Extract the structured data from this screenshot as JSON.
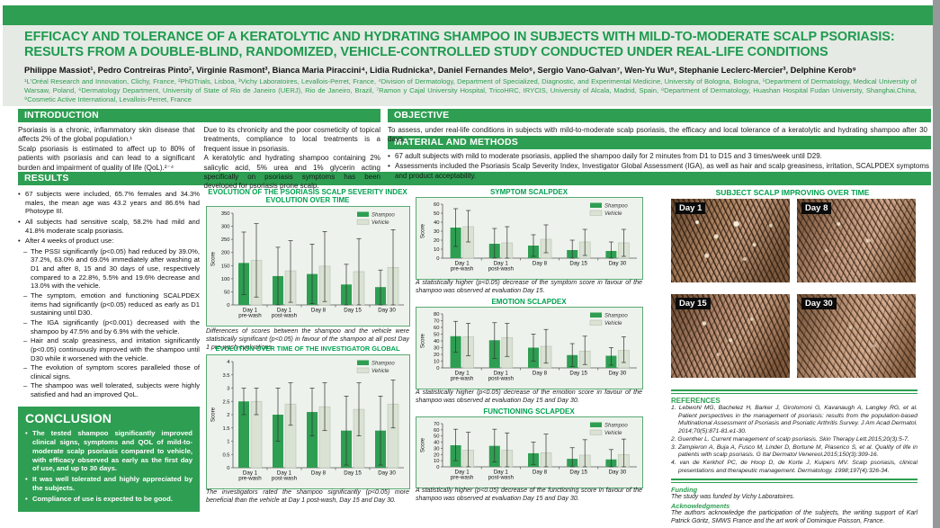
{
  "colors": {
    "accent_green": "#2e9e52",
    "chart_title_green": "#00a24f",
    "header_bg": "#e5eae4",
    "panel_bg": "#edf2ec",
    "shampoo_bar": "#2e9e52",
    "vehicle_bar": "#d9e2d3"
  },
  "header": {
    "title_line1": "EFFICACY AND TOLERANCE OF A KERATOLYTIC AND HYDRATING SHAMPOO IN SUBJECTS WITH MILD-TO-MODERATE SCALP PSORIASIS:",
    "title_line2": "RESULTS FROM A DOUBLE-BLIND, RANDOMIZED, VEHICLE-CONTROLLED STUDY CONDUCTED UNDER REAL-LIFE CONDITIONS",
    "authors": "Philippe Massiot¹, Pedro Contreiras Pinto², Virginie Rasmont³, Bianca Maria Piraccini⁴, Lidia Rudnicka⁵, Daniel Fernandes Melo⁶, Sergio Vano-Galvan⁷, Wen-Yu Wu⁸, Stephanie Leclerc-Mercier³, Delphine Kerob⁹",
    "affiliations": "¹L'Oréal Research and Innovation, Clichy, France, ²PhDTrials, Lisboa, ³Vichy Laboratoires, Levallois-Perret, France, ⁴Division of Dermatology, Department of Specialized, Diagnostic, and Experimental Medicine, University of Bologna, Bologna, ⁵Department of Dermatology, Medical University of Warsaw, Poland, ⁶Dermatology Department, University of State of Rio de Janeiro (UERJ), Rio de Janeiro, Brazil, ⁷Ramon y Cajal University Hospital, TricoHRC, IRYCIS, University of Alcala, Madrid, Spain, ⁸Department of Dermatology, Huashan Hospital Fudan University, Shanghai,China, ⁹Cosmetic Active International, Levallois-Perret, France"
  },
  "sections": {
    "introduction": {
      "heading": "INTRODUCTION",
      "col1_p1": "Psoriasis is a chronic, inflammatory skin disease that affects 2% of the global population.¹",
      "col1_p2": "Scalp psoriasis is estimated to affect up to 80% of patients with psoriasis and can lead to a significant burden and impairment of quality of life (QoL).²⁻⁴",
      "col2_p1": "Due to its chronicity and the poor cosmeticity of topical treatments, compliance to local treatments is a frequent issue in psoriasis.",
      "col2_p2": "A keratolytic and hydrating shampoo containing 2% salicylic acid, 5% urea and 1% glycerin acting specifically on psoriasis symptoms has been developed for psoriasis prone scalp."
    },
    "objective": {
      "heading": "OBJECTIVE",
      "text": "To assess, under real-life conditions in subjects with mild-to-moderate scalp psoriasis, the efficacy and local tolerance of a keratolytic and hydrating shampoo after 30 days."
    },
    "methods": {
      "heading": "MATERIAL AND METHODS",
      "bullets": [
        "67 adult subjects with mild to moderate psoriasis, applied the shampoo daily for 2 minutes from D1 to D15 and 3 times/week until D29.",
        "Assessments included the Psoriasis Scalp Severity Index, Investigator Global Assessment (IGA), as well as hair and scalp greasiness, irritation, SCALPDEX symptoms and product acceptability."
      ]
    },
    "results": {
      "heading": "RESULTS",
      "bullets": [
        "67 subjects were included, 65.7% females and 34.3% males, the mean age was 43.2 years and 86.6% had Photoype III.",
        "All subjects had sensitive scalp, 58.2% had mild and 41.8% moderate scalp psoriasis.",
        "After 4 weeks of product use:"
      ],
      "sub_bullets": [
        "The PSSI significantly (p<0.05) had reduced by 39.0%, 37.2%, 63.0% and 69.0% immediately after washing at D1 and after 8, 15 and 30 days of use, respectively compared to a 22.8%, 5.5% and 19.6% decrease and 13.0% with the vehicle.",
        "The symptom, emotion and functioning SCALPDEX items had significantly (p<0.05) reduced as early as D1 sustaining until D30.",
        "The IGA significantly (p<0.001) decreased with the shampoo by 47.5% and by 6.9% with the vehicle.",
        "Hair and scalp greasiness, and irritation significantly (p<0.05) continuously improved with the shampoo until D30 while it worsened with the vehicle.",
        "The evolution of symptom scores paralleled those of clinical signs.",
        "The shampoo was well tolerated, subjects were highly satisfied and had an improved QoL."
      ]
    },
    "conclusion": {
      "heading": "CONCLUSION",
      "bullets": [
        "The tested shampoo significantly improved clinical signs, symptoms and QOL of mild-to-moderate scalp psoriasis compared to vehicle, with efficacy observed as early as the first day of use, and up to 30 days.",
        "It was well tolerated and highly appreciated by the subjects.",
        "Compliance of use is expected to be good."
      ]
    },
    "scalp": {
      "heading": "SUBJECT SCALP IMPROVING OVER TIME",
      "photos": [
        "Day 1",
        "Day 8",
        "Day 15",
        "Day 30"
      ]
    },
    "references": {
      "heading": "REFERENCES",
      "items": [
        "1. Lebwohl MG, Bachelez H, Barker J, Girolomoni G, Kavanaugh A, Langley RG, et al. Patient perspectives in the management of psoriasis: results from the population-based Multinational Assessment of Psoriasis and Psoriatic Arthritis Survey. J Am Acad Dermatol. 2014;70(5):871-81.e1-30.",
        "2. Guenther L. Current management of scalp psoriasis. Skin Therapy Lett.2015;20(3):5-7.",
        "3. Zampieron A, Buja A, Fusco M, Linder D, Bortune M, Piaserico S, et al. Quality of life in patients with scalp psoriasis. G Ital Dermatol Venereol.2015;150(3):309-16.",
        "4. van de Kerkhof PC, de Hoop D, de Korte J, Kuipers MV. Scalp psoriasis, clinical presentations and therapeutic management. Dermatology. 1998;197(4):326-34."
      ],
      "funding_heading": "Funding",
      "funding_text": "The study was funded by Vichy Laboratoires.",
      "ack_heading": "Acknowledgments",
      "ack_text": "The authors acknowledge the participation of the subjects, the writing support of Karl Patrick Göritz, SMWS France and the art work of Dominique Poisson, France."
    }
  },
  "chart_data": [
    {
      "type": "bar",
      "title": "EVOLUTION OF THE PSORIASIS SCALP SEVERITY INDEX EVOLUTION OVER TIME",
      "ylabel": "Score",
      "ylim": [
        0,
        350
      ],
      "ytick": 50,
      "legend_position": "top-right",
      "grid": false,
      "categories": [
        "Day 1|pre-wash",
        "Day 1|post-wash",
        "Day 8",
        "Day 15",
        "Day 30"
      ],
      "series": [
        {
          "name": "Shampoo",
          "color": "#2e9e52",
          "values": [
            160,
            110,
            118,
            78,
            68
          ],
          "err_lo": [
            40,
            0,
            5,
            0,
            0
          ],
          "err_hi": [
            278,
            220,
            232,
            155,
            133
          ]
        },
        {
          "name": "Vehicle",
          "color": "#d9e2d3",
          "values": [
            170,
            130,
            148,
            127,
            143
          ],
          "err_lo": [
            30,
            10,
            13,
            0,
            0
          ],
          "err_hi": [
            310,
            245,
            280,
            253,
            287
          ]
        }
      ],
      "caption": "Differences of scores between the shampoo and the vehicle were statistically significant (p<0.05) in favour of the shampoo at all post Day 1 pre-wash evaluations."
    },
    {
      "type": "bar",
      "title": "EVOLUTION OVER TIME OF THE INVESTIGATOR GLOBAL ASSESSMENT",
      "ylabel": "Score",
      "ylim": [
        0,
        4
      ],
      "ytick": 0.5,
      "legend_position": "top-right",
      "grid": false,
      "categories": [
        "Day 1|pre-wash",
        "Day 1|post-wash",
        "Day 8",
        "Day 15",
        "Day 30"
      ],
      "series": [
        {
          "name": "Shampoo",
          "color": "#2e9e52",
          "values": [
            2.5,
            2.0,
            2.1,
            1.4,
            1.4
          ],
          "err_lo": [
            2.0,
            1.0,
            1.2,
            0.1,
            0.1
          ],
          "err_hi": [
            3.0,
            3.0,
            3.0,
            2.7,
            2.7
          ]
        },
        {
          "name": "Vehicle",
          "color": "#d9e2d3",
          "values": [
            2.5,
            2.4,
            2.3,
            2.2,
            2.4
          ],
          "err_lo": [
            2.0,
            1.6,
            1.4,
            1.2,
            1.5
          ],
          "err_hi": [
            3.0,
            3.2,
            3.2,
            3.2,
            3.3
          ]
        }
      ],
      "caption": "The investigators rated the shampoo significantly (p<0.05) more beneficial than the vehicle at Day 1 post-wash, Day 15 and Day 30."
    },
    {
      "type": "bar",
      "title": "SYMPTOM SCALPDEX",
      "ylabel": "Score",
      "ylim": [
        0,
        60
      ],
      "ytick": 10,
      "legend_position": "top-right",
      "grid": false,
      "categories": [
        "Day 1|pre-wash",
        "Day 1|post-wash",
        "Day 8",
        "Day 15",
        "Day 30"
      ],
      "series": [
        {
          "name": "Shampoo",
          "color": "#2e9e52",
          "values": [
            34,
            16,
            14,
            9,
            8
          ],
          "err_lo": [
            13,
            0,
            2,
            0,
            0
          ],
          "err_hi": [
            55,
            33,
            26,
            20,
            18
          ]
        },
        {
          "name": "Vehicle",
          "color": "#d9e2d3",
          "values": [
            35,
            17,
            21,
            18,
            17
          ],
          "err_lo": [
            18,
            0,
            6,
            3,
            2
          ],
          "err_hi": [
            53,
            35,
            37,
            32,
            32
          ]
        }
      ],
      "caption": "A statistically higher (p<0.05) decrease of the symptom score in favour of the shampoo was observed at evaluation Day 15."
    },
    {
      "type": "bar",
      "title": "EMOTION SCLAPDEX",
      "ylabel": "Score",
      "ylim": [
        0,
        80
      ],
      "ytick": 10,
      "legend_position": "top-right",
      "grid": false,
      "categories": [
        "Day 1|pre-wash",
        "Day 1|post-wash",
        "Day 8",
        "Day 15",
        "Day 30"
      ],
      "series": [
        {
          "name": "Shampoo",
          "color": "#2e9e52",
          "values": [
            47,
            41,
            30,
            19,
            18
          ],
          "err_lo": [
            23,
            14,
            10,
            2,
            4
          ],
          "err_hi": [
            69,
            67,
            50,
            36,
            30
          ]
        },
        {
          "name": "Vehicle",
          "color": "#d9e2d3",
          "values": [
            46,
            45,
            32,
            25,
            26
          ],
          "err_lo": [
            18,
            17,
            7,
            5,
            8
          ],
          "err_hi": [
            66,
            66,
            57,
            47,
            46
          ]
        }
      ],
      "caption": "A statistically higher (p<0.05) decrease of the emotion score in favour of the shampoo was observed at evaluation Day 15 and Day 30."
    },
    {
      "type": "bar",
      "title": "FUNCTIONING SCLAPDEX",
      "ylabel": "Score",
      "ylim": [
        0,
        70
      ],
      "ytick": 10,
      "legend_position": "top-right",
      "grid": false,
      "categories": [
        "Day 1|pre-wash",
        "Day 1|post-wash",
        "Day 8",
        "Day 15",
        "Day 30"
      ],
      "series": [
        {
          "name": "Shampoo",
          "color": "#2e9e52",
          "values": [
            35,
            34,
            22,
            13,
            12
          ],
          "err_lo": [
            10,
            8,
            4,
            0,
            0
          ],
          "err_hi": [
            61,
            61,
            40,
            31,
            28
          ]
        },
        {
          "name": "Vehicle",
          "color": "#d9e2d3",
          "values": [
            27,
            27,
            23,
            19,
            20
          ],
          "err_lo": [
            0,
            0,
            0,
            0,
            0
          ],
          "err_hi": [
            56,
            55,
            53,
            44,
            45
          ]
        }
      ],
      "caption": "A statistically higher (p<0.05) decrease of the functioning score in favour of the shampoo was observed at evaluation Day 15 and Day 30."
    }
  ]
}
